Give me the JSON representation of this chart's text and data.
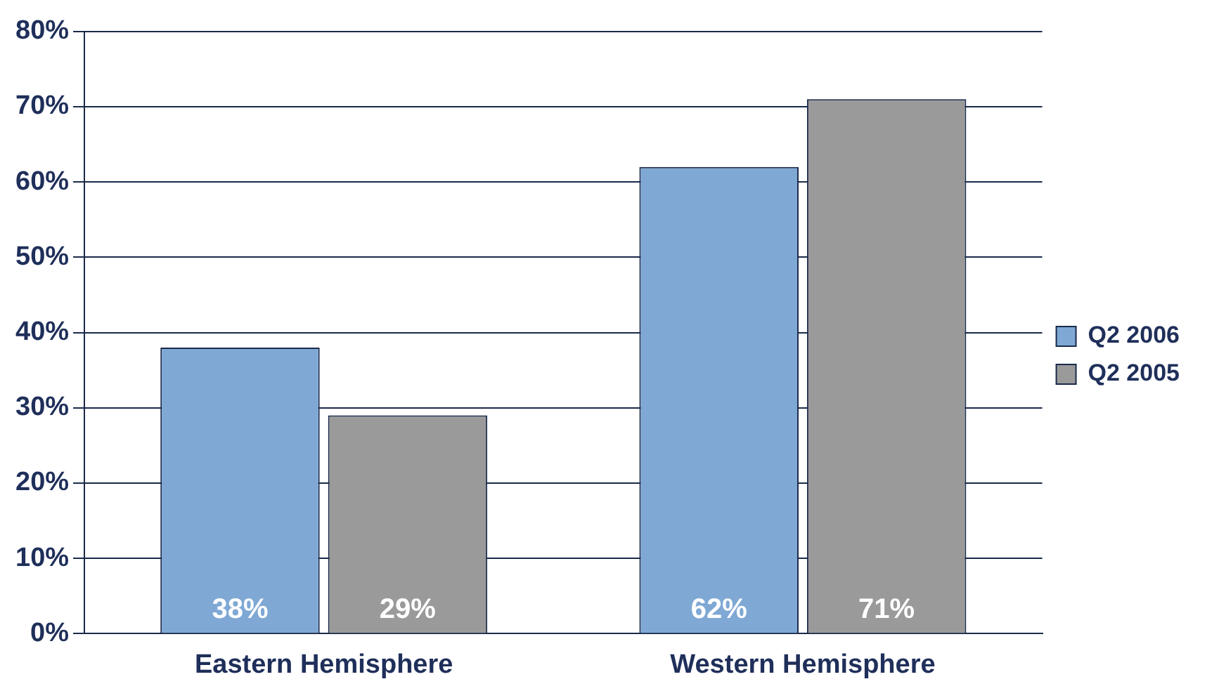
{
  "chart_data": {
    "type": "bar",
    "categories": [
      "Eastern Hemisphere",
      "Western Hemisphere"
    ],
    "series": [
      {
        "name": "Q2 2006",
        "color": "#7fa8d4",
        "values": [
          38,
          62
        ],
        "value_labels": [
          "38%",
          "62%"
        ]
      },
      {
        "name": "Q2 2005",
        "color": "#9a9a9a",
        "values": [
          29,
          71
        ],
        "value_labels": [
          "29%",
          "71%"
        ]
      }
    ],
    "ylim": [
      0,
      80
    ],
    "yticks": [
      {
        "value": 0,
        "label": "0%"
      },
      {
        "value": 10,
        "label": "10%"
      },
      {
        "value": 20,
        "label": "20%"
      },
      {
        "value": 30,
        "label": "30%"
      },
      {
        "value": 40,
        "label": "40%"
      },
      {
        "value": 50,
        "label": "50%"
      },
      {
        "value": 60,
        "label": "60%"
      },
      {
        "value": 70,
        "label": "70%"
      },
      {
        "value": 80,
        "label": "80%"
      }
    ],
    "grid": "y",
    "legend": "right"
  }
}
